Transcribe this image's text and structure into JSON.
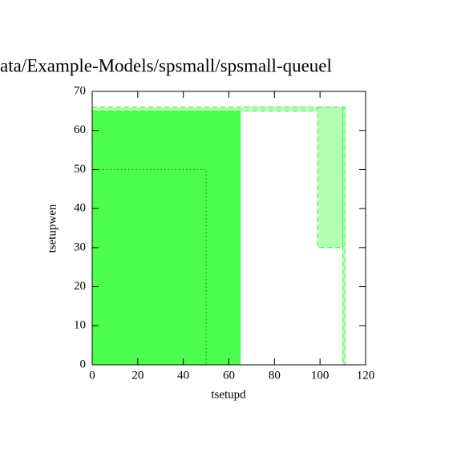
{
  "chart_data": {
    "type": "region",
    "title": "ata/Example-Models/spsmall/spsmall-queuel",
    "xlabel": "tsetupd",
    "ylabel": "tsetupwen",
    "xlim": [
      0,
      120
    ],
    "ylim": [
      0,
      70
    ],
    "xticks": [
      0,
      20,
      40,
      60,
      80,
      100,
      120
    ],
    "yticks": [
      0,
      10,
      20,
      30,
      40,
      50,
      60,
      70
    ],
    "regions": [
      {
        "x": [
          0,
          65
        ],
        "y": [
          0,
          65
        ],
        "fill": "#4dff4d",
        "stroke": "#4dff4d",
        "style": "solid"
      },
      {
        "x": [
          0,
          50
        ],
        "y": [
          0,
          50
        ],
        "fill": "none",
        "stroke": "#1a7a1a",
        "style": "dotted"
      },
      {
        "x": [
          0,
          111
        ],
        "y": [
          65,
          66
        ],
        "fill": "#b3ffb3",
        "stroke": "#33ee33",
        "style": "dashed"
      },
      {
        "x": [
          110,
          111
        ],
        "y": [
          0,
          66
        ],
        "fill": "#b3ffb3",
        "stroke": "#33ee33",
        "style": "dashed"
      },
      {
        "x": [
          99,
          110
        ],
        "y": [
          30,
          66
        ],
        "fill": "#b3ffb3",
        "stroke": "#33ee33",
        "style": "dashed"
      }
    ]
  }
}
